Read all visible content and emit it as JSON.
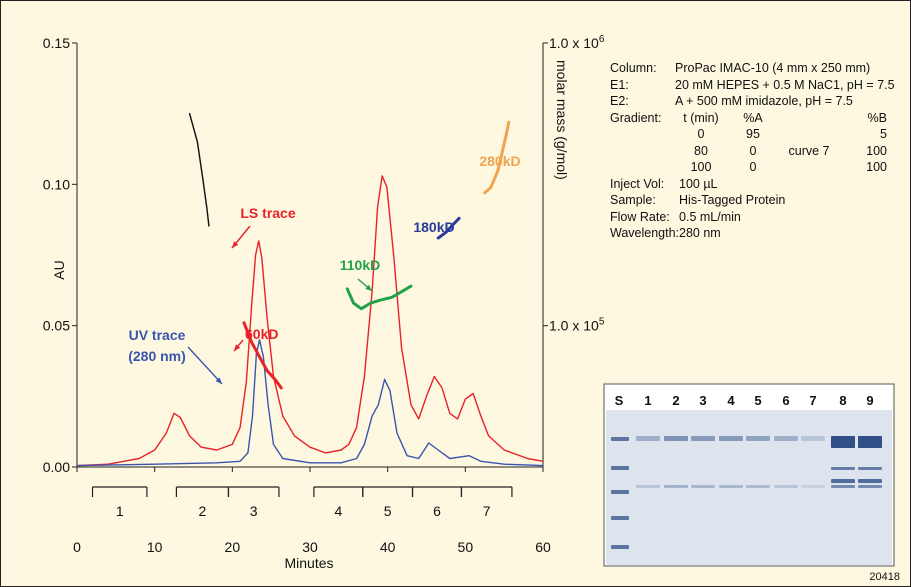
{
  "chart_data": {
    "type": "line",
    "xlabel": "Minutes",
    "ylabel": "AU",
    "y2label": "molar mass (g/mol)",
    "xlim": [
      0,
      60
    ],
    "ylim": [
      0,
      0.15
    ],
    "x_ticks": [
      "0",
      "10",
      "20",
      "30",
      "40",
      "50",
      "60"
    ],
    "y_ticks": [
      "0.00",
      "0.05",
      "0.10",
      "0.15"
    ],
    "y2_ticks": [
      {
        "base": "1.0 x 10",
        "exp": "6"
      },
      {
        "base": "1.0 x 10",
        "exp": "5"
      }
    ],
    "series": [
      {
        "name": "LS trace",
        "color": "#e8222a",
        "points": [
          [
            0,
            0.0005
          ],
          [
            4,
            0.001
          ],
          [
            8,
            0.003
          ],
          [
            10,
            0.006
          ],
          [
            11.5,
            0.012
          ],
          [
            12.5,
            0.019
          ],
          [
            13.3,
            0.0175
          ],
          [
            14.5,
            0.011
          ],
          [
            16,
            0.007
          ],
          [
            18,
            0.006
          ],
          [
            20,
            0.008
          ],
          [
            21,
            0.014
          ],
          [
            21.8,
            0.03
          ],
          [
            22.5,
            0.058
          ],
          [
            23,
            0.075
          ],
          [
            23.4,
            0.08
          ],
          [
            23.8,
            0.074
          ],
          [
            24.5,
            0.052
          ],
          [
            25.3,
            0.032
          ],
          [
            26.5,
            0.018
          ],
          [
            28,
            0.011
          ],
          [
            30,
            0.007
          ],
          [
            32,
            0.005
          ],
          [
            34,
            0.006
          ],
          [
            35,
            0.008
          ],
          [
            36,
            0.014
          ],
          [
            37,
            0.032
          ],
          [
            38,
            0.062
          ],
          [
            38.7,
            0.092
          ],
          [
            39.3,
            0.103
          ],
          [
            39.9,
            0.099
          ],
          [
            40.8,
            0.074
          ],
          [
            41.8,
            0.042
          ],
          [
            43,
            0.022
          ],
          [
            44,
            0.017
          ],
          [
            45,
            0.025
          ],
          [
            46,
            0.032
          ],
          [
            47,
            0.028
          ],
          [
            48,
            0.019
          ],
          [
            49,
            0.017
          ],
          [
            50,
            0.024
          ],
          [
            51,
            0.026
          ],
          [
            52,
            0.018
          ],
          [
            53,
            0.011
          ],
          [
            55,
            0.006
          ],
          [
            58,
            0.003
          ],
          [
            60,
            0.002
          ]
        ]
      },
      {
        "name": "UV trace (280 nm)",
        "color": "#3a55b0",
        "points": [
          [
            0,
            0.0005
          ],
          [
            10,
            0.001
          ],
          [
            18,
            0.0015
          ],
          [
            21,
            0.002
          ],
          [
            22,
            0.005
          ],
          [
            22.6,
            0.018
          ],
          [
            23.1,
            0.04
          ],
          [
            23.5,
            0.045
          ],
          [
            24,
            0.039
          ],
          [
            24.6,
            0.022
          ],
          [
            25.3,
            0.008
          ],
          [
            26.5,
            0.003
          ],
          [
            30,
            0.0015
          ],
          [
            34,
            0.0015
          ],
          [
            36,
            0.003
          ],
          [
            37,
            0.008
          ],
          [
            38,
            0.018
          ],
          [
            38.8,
            0.022
          ],
          [
            39.6,
            0.031
          ],
          [
            40.3,
            0.027
          ],
          [
            41.2,
            0.012
          ],
          [
            42.5,
            0.004
          ],
          [
            44,
            0.003
          ],
          [
            45.3,
            0.0085
          ],
          [
            46.5,
            0.006
          ],
          [
            48,
            0.003
          ],
          [
            50.5,
            0.004
          ],
          [
            52,
            0.002
          ],
          [
            55,
            0.001
          ],
          [
            60,
            0.0005
          ]
        ]
      }
    ],
    "mass_segments": [
      {
        "label": "",
        "color": "#111111",
        "points": [
          [
            14.5,
            0.125
          ],
          [
            15.5,
            0.115
          ],
          [
            16.2,
            0.102
          ],
          [
            16.7,
            0.092
          ],
          [
            17,
            0.085
          ]
        ]
      },
      {
        "label": "60kD",
        "color": "#e8222a",
        "points": [
          [
            21.5,
            0.051
          ],
          [
            22.5,
            0.044
          ],
          [
            23.5,
            0.039
          ],
          [
            24.5,
            0.034
          ],
          [
            25.5,
            0.031
          ],
          [
            26.3,
            0.028
          ]
        ]
      },
      {
        "label": "110kD",
        "color": "#22a14a",
        "points": [
          [
            34.8,
            0.063
          ],
          [
            35.6,
            0.058
          ],
          [
            36.6,
            0.056
          ],
          [
            37.8,
            0.058
          ],
          [
            39,
            0.059
          ],
          [
            40.5,
            0.06
          ],
          [
            41.8,
            0.062
          ],
          [
            43,
            0.064
          ]
        ]
      },
      {
        "label": "180kD",
        "color": "#2a3a9c",
        "points": [
          [
            46.5,
            0.081
          ],
          [
            47.5,
            0.083
          ],
          [
            48.5,
            0.086
          ],
          [
            49.2,
            0.088
          ]
        ]
      },
      {
        "label": "280kD",
        "color": "#f0a44e",
        "points": [
          [
            52.5,
            0.097
          ],
          [
            53.3,
            0.099
          ],
          [
            54.2,
            0.105
          ],
          [
            54.8,
            0.112
          ],
          [
            55.3,
            0.118
          ],
          [
            55.6,
            0.122
          ]
        ]
      }
    ],
    "annotations": [
      {
        "text": "LS trace",
        "color": "#e8222a"
      },
      {
        "text": "60kD",
        "color": "#e8222a"
      },
      {
        "text": "UV trace",
        "color": "#3a55b0"
      },
      {
        "text": "(280 nm)",
        "color": "#3a55b0"
      },
      {
        "text": "110kD",
        "color": "#22a14a"
      },
      {
        "text": "180kD",
        "color": "#2a3a9c"
      },
      {
        "text": "280kD",
        "color": "#f0a44e"
      }
    ],
    "fractions": [
      {
        "label": "1",
        "start": 2,
        "end": 9
      },
      {
        "label": "2",
        "start": 12.8,
        "end": 19.5
      },
      {
        "label": "3",
        "start": 19.5,
        "end": 26
      },
      {
        "label": "4",
        "start": 30.5,
        "end": 36.8
      },
      {
        "label": "5",
        "start": 36.8,
        "end": 43.2
      },
      {
        "label": "6",
        "start": 43.2,
        "end": 49.5
      },
      {
        "label": "7",
        "start": 49.5,
        "end": 56
      }
    ]
  },
  "conditions": {
    "rows": [
      {
        "label": "Column:",
        "value": "ProPac IMAC-10 (4 mm x 250 mm)"
      },
      {
        "label": "E1:",
        "value": "20 mM HEPES + 0.5 M NaC1, pH = 7.5"
      },
      {
        "label": "E2:",
        "value": "A + 500 mM imidazole, pH = 7.5"
      }
    ],
    "gradient_label": "Gradient:",
    "gradient_header": [
      "t (min)",
      "%A",
      "",
      "%B"
    ],
    "gradient_rows": [
      [
        "0",
        "95",
        "",
        "5"
      ],
      [
        "80",
        "0",
        "curve 7",
        "100"
      ],
      [
        "100",
        "0",
        "",
        "100"
      ]
    ],
    "rows2": [
      {
        "label": "Inject Vol:",
        "value": "100 µL"
      },
      {
        "label": "Sample:",
        "value": "His-Tagged Protein"
      },
      {
        "label": "Flow Rate:",
        "value": "0.5 mL/min"
      },
      {
        "label": "Wavelength:",
        "value": "280 nm"
      }
    ]
  },
  "gel": {
    "lanes": [
      "S",
      "1",
      "2",
      "3",
      "4",
      "5",
      "6",
      "7",
      "8",
      "9"
    ],
    "band_intensity": [
      0.0,
      0.35,
      0.55,
      0.5,
      0.5,
      0.45,
      0.35,
      0.2,
      1.0,
      1.0
    ],
    "background": "#dde4ee",
    "band_color": "#2f4f86"
  },
  "figure_id": "20418"
}
